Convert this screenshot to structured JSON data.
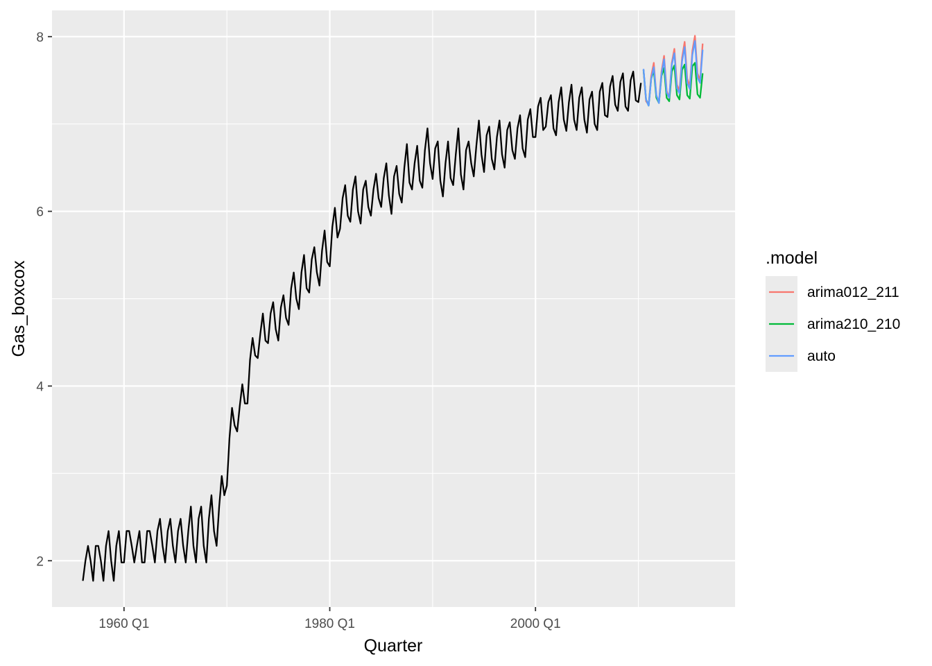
{
  "chart_data": {
    "type": "line",
    "xlabel": "Quarter",
    "ylabel": "Gas_boxcox",
    "x_ticks": [
      "1960 Q1",
      "1980 Q1",
      "2000 Q1"
    ],
    "x_tick_years": [
      1960,
      1980,
      2000
    ],
    "y_ticks": [
      2,
      4,
      6,
      8
    ],
    "xlim": [
      1953.0,
      2019.4
    ],
    "ylim": [
      1.47,
      8.3
    ],
    "grid": true,
    "history": {
      "start": "1956 Q1",
      "end": "2010 Q2",
      "color": "#000000",
      "values": [
        1.77,
        2.0,
        2.17,
        2.0,
        1.77,
        2.17,
        2.17,
        2.0,
        1.77,
        2.17,
        2.34,
        2.0,
        1.77,
        2.17,
        2.34,
        1.98,
        1.98,
        2.34,
        2.34,
        2.17,
        1.98,
        2.17,
        2.34,
        1.98,
        1.98,
        2.34,
        2.34,
        2.17,
        1.98,
        2.34,
        2.48,
        2.17,
        1.98,
        2.34,
        2.48,
        2.17,
        1.98,
        2.34,
        2.48,
        2.17,
        1.98,
        2.34,
        2.62,
        2.17,
        1.98,
        2.48,
        2.62,
        2.17,
        1.98,
        2.48,
        2.75,
        2.34,
        2.17,
        2.62,
        2.97,
        2.75,
        2.86,
        3.4,
        3.75,
        3.55,
        3.48,
        3.77,
        4.02,
        3.8,
        3.8,
        4.3,
        4.55,
        4.35,
        4.32,
        4.6,
        4.83,
        4.52,
        4.49,
        4.83,
        4.96,
        4.65,
        4.52,
        4.9,
        5.04,
        4.78,
        4.7,
        5.12,
        5.3,
        5.0,
        4.88,
        5.3,
        5.5,
        5.12,
        5.07,
        5.45,
        5.59,
        5.3,
        5.15,
        5.55,
        5.78,
        5.42,
        5.37,
        5.82,
        6.04,
        5.7,
        5.8,
        6.15,
        6.3,
        5.95,
        5.88,
        6.25,
        6.4,
        6.0,
        5.86,
        6.25,
        6.35,
        6.05,
        5.95,
        6.25,
        6.43,
        6.15,
        6.05,
        6.38,
        6.55,
        6.18,
        5.97,
        6.4,
        6.52,
        6.2,
        6.1,
        6.5,
        6.77,
        6.33,
        6.25,
        6.55,
        6.75,
        6.35,
        6.27,
        6.7,
        6.95,
        6.55,
        6.37,
        6.72,
        6.8,
        6.35,
        6.17,
        6.55,
        6.8,
        6.38,
        6.3,
        6.65,
        6.95,
        6.42,
        6.25,
        6.7,
        6.8,
        6.55,
        6.4,
        6.75,
        7.04,
        6.65,
        6.45,
        6.87,
        6.97,
        6.6,
        6.48,
        6.85,
        7.04,
        6.65,
        6.5,
        6.93,
        7.02,
        6.7,
        6.6,
        6.95,
        7.1,
        6.72,
        6.62,
        7.05,
        7.17,
        6.85,
        6.85,
        7.2,
        7.3,
        6.93,
        6.97,
        7.25,
        7.33,
        6.95,
        6.87,
        7.25,
        7.42,
        7.05,
        6.92,
        7.25,
        7.45,
        7.05,
        6.93,
        7.3,
        7.42,
        7.05,
        6.9,
        7.28,
        7.37,
        7.0,
        6.93,
        7.37,
        7.47,
        7.1,
        7.08,
        7.43,
        7.55,
        7.22,
        7.15,
        7.48,
        7.58,
        7.2,
        7.15,
        7.5,
        7.6,
        7.27,
        7.25,
        7.47
      ]
    },
    "forecast_start": "2010 Q3",
    "legend": {
      "title": ".model",
      "position": "right"
    },
    "series": [
      {
        "name": "arima012_211",
        "color": "#F8766D",
        "values": [
          7.62,
          7.26,
          7.22,
          7.55,
          7.7,
          7.32,
          7.25,
          7.6,
          7.78,
          7.38,
          7.3,
          7.7,
          7.86,
          7.45,
          7.38,
          7.76,
          7.94,
          7.52,
          7.43,
          7.84,
          8.01,
          7.58,
          7.5,
          7.92
        ]
      },
      {
        "name": "arima210_210",
        "color": "#00BA38",
        "values": [
          7.62,
          7.28,
          7.21,
          7.52,
          7.61,
          7.3,
          7.24,
          7.55,
          7.64,
          7.3,
          7.26,
          7.6,
          7.67,
          7.33,
          7.28,
          7.62,
          7.68,
          7.33,
          7.29,
          7.66,
          7.7,
          7.34,
          7.3,
          7.58
        ]
      },
      {
        "name": "auto",
        "color": "#619CFF",
        "values": [
          7.63,
          7.28,
          7.21,
          7.52,
          7.65,
          7.33,
          7.24,
          7.57,
          7.74,
          7.36,
          7.3,
          7.68,
          7.81,
          7.41,
          7.35,
          7.72,
          7.88,
          7.47,
          7.4,
          7.79,
          7.95,
          7.53,
          7.47,
          7.85
        ]
      }
    ]
  }
}
